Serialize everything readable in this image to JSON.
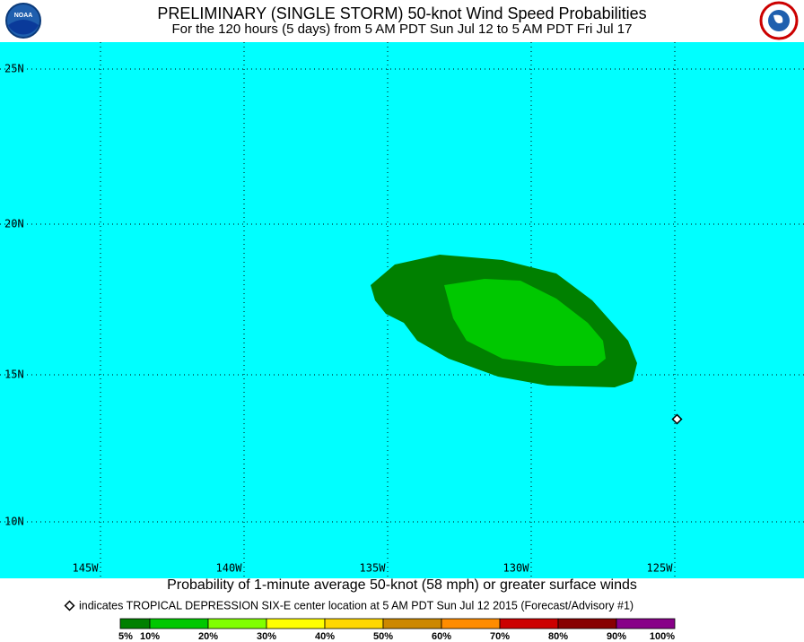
{
  "header": {
    "title": "PRELIMINARY (SINGLE STORM) 50-knot Wind Speed Probabilities",
    "subtitle": "For the 120 hours (5 days) from 5 AM PDT Sun Jul 12 to 5 AM PDT Fri Jul 17",
    "logo_left": "NOAA"
  },
  "map": {
    "latitude_labels": [
      "25N",
      "20N",
      "15N",
      "10N"
    ],
    "longitude_labels": [
      "145W",
      "140W",
      "135W",
      "130W",
      "125W"
    ]
  },
  "footer": {
    "caption": "Probability of 1-minute average 50-knot (58 mph) or greater surface winds",
    "note": "indicates TROPICAL DEPRESSION SIX-E center location at 5 AM PDT Sun Jul 12 2015 (Forecast/Advisory #1)"
  },
  "legend": {
    "labels": [
      "5%",
      "10%",
      "20%",
      "30%",
      "40%",
      "50%",
      "60%",
      "70%",
      "80%",
      "90%",
      "100%"
    ],
    "colors": [
      "#008000",
      "#00c800",
      "#80ff00",
      "#ffff00",
      "#ffd700",
      "#cc8800",
      "#ff8c00",
      "#cc0000",
      "#880000",
      "#880088"
    ]
  }
}
